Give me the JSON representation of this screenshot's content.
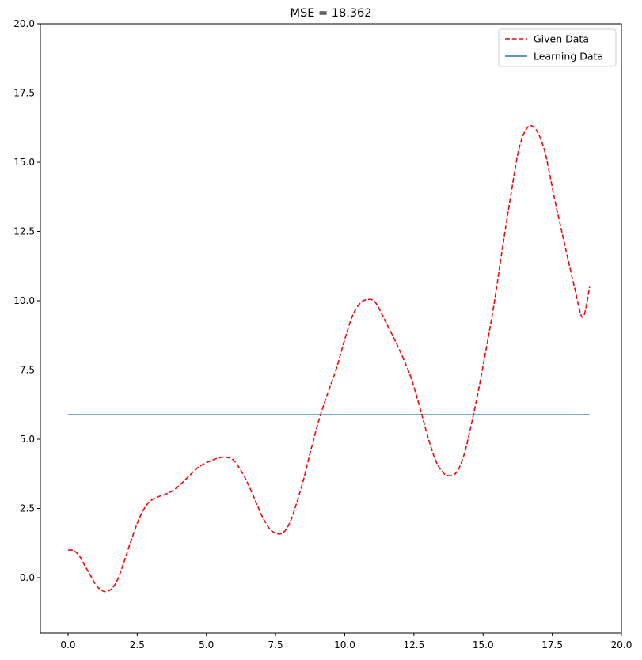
{
  "chart_data": {
    "type": "line",
    "title": "MSE = 18.362",
    "xlim": [
      -1.0,
      20.0
    ],
    "ylim": [
      -2.0,
      20.0
    ],
    "x_ticks": [
      0.0,
      2.5,
      5.0,
      7.5,
      10.0,
      12.5,
      15.0,
      17.5,
      20.0
    ],
    "y_ticks": [
      0.0,
      2.5,
      5.0,
      7.5,
      10.0,
      12.5,
      15.0,
      17.5,
      20.0
    ],
    "x_tick_labels": [
      "0.0",
      "2.5",
      "5.0",
      "7.5",
      "10.0",
      "12.5",
      "15.0",
      "17.5",
      "20.0"
    ],
    "y_tick_labels": [
      "0.0",
      "2.5",
      "5.0",
      "7.5",
      "10.0",
      "12.5",
      "15.0",
      "17.5",
      "20.0"
    ],
    "grid": false,
    "legend_position": "top-right",
    "series": [
      {
        "name": "Given Data",
        "color": "#ff0000",
        "style": "dashed",
        "x": [
          0.0,
          0.2,
          0.4,
          0.6,
          0.8,
          1.0,
          1.2,
          1.4,
          1.6,
          1.8,
          2.0,
          2.3,
          2.6,
          2.9,
          3.2,
          3.5,
          3.8,
          4.1,
          4.4,
          4.7,
          5.0,
          5.3,
          5.6,
          5.9,
          6.1,
          6.4,
          6.7,
          7.0,
          7.3,
          7.6,
          7.8,
          8.0,
          8.2,
          8.5,
          8.8,
          9.1,
          9.4,
          9.7,
          10.0,
          10.3,
          10.6,
          10.9,
          11.1,
          11.3,
          11.5,
          11.8,
          12.1,
          12.4,
          12.7,
          13.0,
          13.3,
          13.6,
          13.9,
          14.1,
          14.3,
          14.5,
          14.8,
          15.1,
          15.4,
          15.7,
          16.0,
          16.3,
          16.6,
          16.9,
          17.2,
          17.4,
          17.6,
          17.8,
          18.0,
          18.3,
          18.6,
          18.85
        ],
        "y": [
          1.0,
          0.98,
          0.8,
          0.45,
          0.1,
          -0.25,
          -0.45,
          -0.5,
          -0.38,
          -0.05,
          0.5,
          1.4,
          2.2,
          2.7,
          2.9,
          3.0,
          3.15,
          3.4,
          3.7,
          3.98,
          4.15,
          4.28,
          4.35,
          4.3,
          4.1,
          3.6,
          2.95,
          2.25,
          1.75,
          1.58,
          1.65,
          1.95,
          2.5,
          3.5,
          4.7,
          5.8,
          6.7,
          7.55,
          8.6,
          9.5,
          9.95,
          10.05,
          9.95,
          9.6,
          9.2,
          8.6,
          7.95,
          7.2,
          6.2,
          5.1,
          4.2,
          3.75,
          3.7,
          3.9,
          4.4,
          5.2,
          6.6,
          8.2,
          9.9,
          11.9,
          13.8,
          15.5,
          16.25,
          16.2,
          15.5,
          14.6,
          13.6,
          12.7,
          11.8,
          10.5,
          9.4,
          10.5
        ]
      },
      {
        "name": "Learning Data",
        "color": "#1f77b4",
        "style": "solid",
        "x": [
          0.0,
          18.85
        ],
        "y": [
          5.88,
          5.88
        ]
      }
    ]
  }
}
